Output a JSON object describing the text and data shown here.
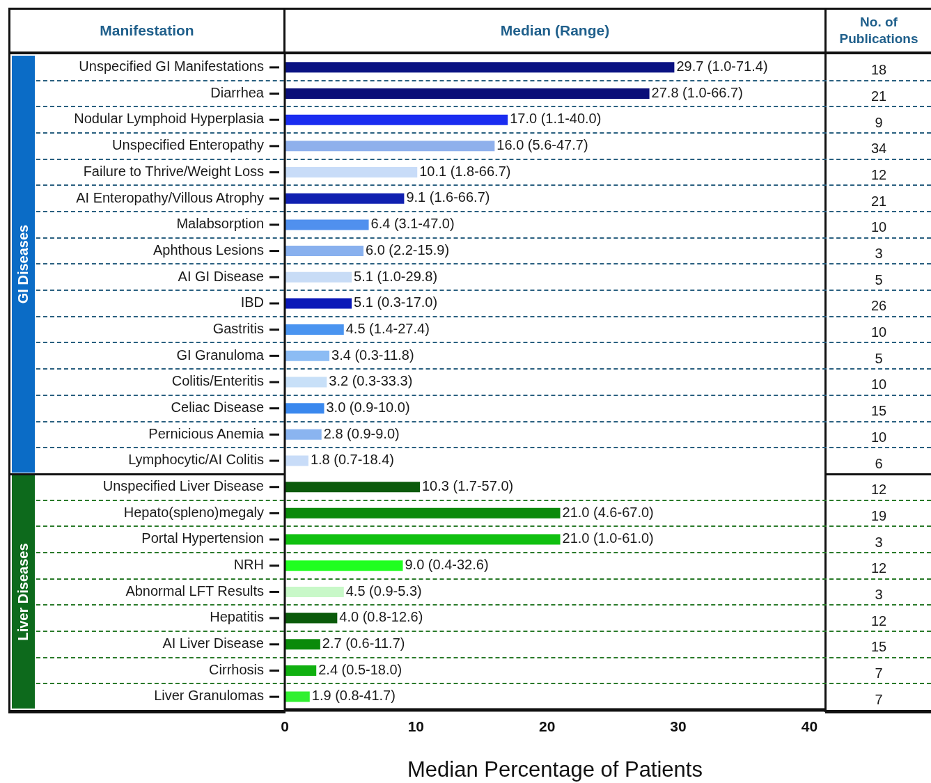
{
  "chart_data": {
    "type": "bar",
    "orientation": "horizontal",
    "xlabel": "Median Percentage of Patients",
    "categories": [
      "Unspecified GI Manifestations",
      "Diarrhea",
      "Nodular Lymphoid Hyperplasia",
      "Unspecified Enteropathy",
      "Failure to Thrive/Weight Loss",
      "AI Enteropathy/Villous Atrophy",
      "Malabsorption",
      "Aphthous Lesions",
      "AI GI Disease",
      "IBD",
      "Gastritis",
      "GI Granuloma",
      "Colitis/Enteritis",
      "Celiac Disease",
      "Pernicious Anemia",
      "Lymphocytic/AI Colitis",
      "Unspecified Liver Disease",
      "Hepato(spleno)megaly",
      "Portal Hypertension",
      "NRH",
      "Abnormal LFT Results",
      "Hepatitis",
      "AI Liver Disease",
      "Cirrhosis",
      "Liver Granulomas"
    ],
    "values": [
      29.7,
      27.8,
      17.0,
      16.0,
      10.1,
      9.1,
      6.4,
      6.0,
      5.1,
      5.1,
      4.5,
      3.4,
      3.2,
      3.0,
      2.8,
      1.8,
      10.3,
      21.0,
      21.0,
      9.0,
      4.5,
      4.0,
      2.7,
      2.4,
      1.9
    ],
    "value_labels": [
      "29.7 (1.0-71.4)",
      "27.8 (1.0-66.7)",
      "17.0 (1.1-40.0)",
      "16.0 (5.6-47.7)",
      "10.1 (1.8-66.7)",
      "9.1 (1.6-66.7)",
      "6.4 (3.1-47.0)",
      "6.0 (2.2-15.9)",
      "5.1 (1.0-29.8)",
      "5.1 (0.3-17.0)",
      "4.5 (1.4-27.4)",
      "3.4 (0.3-11.8)",
      "3.2 (0.3-33.3)",
      "3.0 (0.9-10.0)",
      "2.8 (0.9-9.0)",
      "1.8 (0.7-18.4)",
      "10.3 (1.7-57.0)",
      "21.0 (4.6-67.0)",
      "21.0 (1.0-61.0)",
      "9.0 (0.4-32.6)",
      "4.5 (0.9-5.3)",
      "4.0 (0.8-12.6)",
      "2.7 (0.6-11.7)",
      "2.4 (0.5-18.0)",
      "1.9 (0.8-41.7)"
    ],
    "colors": [
      "#0a1282",
      "#0a0e78",
      "#1a2cf0",
      "#8fb0ec",
      "#c8dcf8",
      "#1020b0",
      "#5090ee",
      "#88b0ee",
      "#c8dcf6",
      "#0a18b8",
      "#4a94f0",
      "#8cbcf4",
      "#c8e0f8",
      "#3a88ee",
      "#8ab4f0",
      "#c8dcf8",
      "#0b5a0b",
      "#0a8a0a",
      "#10c010",
      "#20ff20",
      "#c8f8c8",
      "#0a5a0a",
      "#0a8a0a",
      "#10b010",
      "#30f030"
    ],
    "xlim": [
      0,
      41.2
    ],
    "xticks": [
      0,
      10,
      20,
      30,
      40
    ],
    "grid": "y",
    "annotations": [
      "Manifestation",
      "Median (Range)",
      "No. of Publications",
      "GI Diseases",
      "Liver Diseases",
      "18",
      "21",
      "9",
      "34",
      "12",
      "21",
      "10",
      "3",
      "5",
      "26",
      "10",
      "5",
      "10",
      "15",
      "10",
      "6",
      "12",
      "19",
      "3",
      "12",
      "3",
      "12",
      "15",
      "7",
      "7"
    ]
  }
}
